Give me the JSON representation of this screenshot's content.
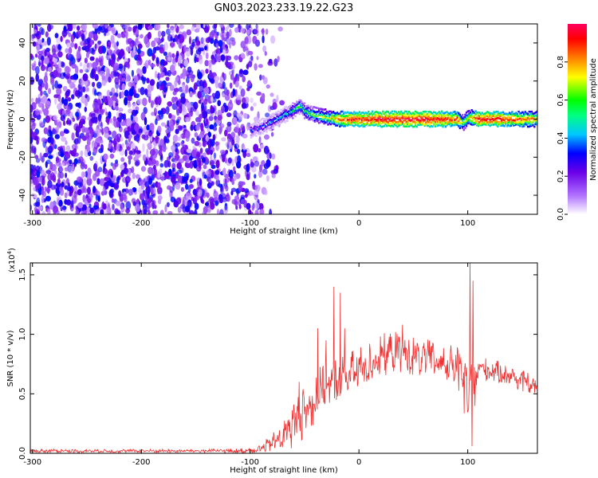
{
  "title": "GN03.2023.233.19.22.G23",
  "chart_data": [
    {
      "type": "heatmap",
      "name": "spectrogram",
      "xlabel": "Height of straight line (km)",
      "ylabel": "Frequency (Hz)",
      "xlim": [
        -302,
        164
      ],
      "ylim": [
        -50,
        50
      ],
      "xticks": [
        -300,
        -200,
        -100,
        0,
        100
      ],
      "yticks": [
        -40,
        -20,
        0,
        20,
        40
      ],
      "colorbar": {
        "label": "Normalized spectral amplitude",
        "range": [
          0.0,
          1.0
        ],
        "ticks": [
          0.0,
          0.2,
          0.4,
          0.6,
          0.8
        ],
        "colormap": [
          "#ffffff",
          "#b070ff",
          "#6a00e8",
          "#0000ff",
          "#00c8ff",
          "#00ff00",
          "#ffff00",
          "#ff8000",
          "#ff0000",
          "#ff0060"
        ]
      },
      "noise_region_x": [
        -302,
        -80
      ],
      "signal_track": {
        "x": [
          -100,
          -90,
          -80,
          -70,
          -60,
          -55,
          -50,
          -40,
          -30,
          -20,
          -10,
          0,
          20,
          40,
          60,
          80,
          90,
          95,
          100,
          110,
          130,
          164
        ],
        "y": [
          -6,
          -4,
          -1,
          2,
          5,
          7,
          4,
          2,
          1,
          0,
          0,
          0,
          0,
          0,
          0,
          0,
          0,
          -2,
          1,
          0,
          0,
          0
        ],
        "amp": [
          0.35,
          0.35,
          0.4,
          0.45,
          0.55,
          0.55,
          0.55,
          0.6,
          0.65,
          0.8,
          0.9,
          0.9,
          0.95,
          0.95,
          0.95,
          0.9,
          0.85,
          0.6,
          0.7,
          0.95,
          0.9,
          0.75
        ]
      }
    },
    {
      "type": "line",
      "name": "snr",
      "xlabel": "Height of straight line (km)",
      "ylabel": "SNR (10 * v/v)",
      "multiplier": "(x10",
      "multiplier_exp": "4",
      "multiplier_close": ")",
      "color": "#ee3333",
      "xlim": [
        -302,
        164
      ],
      "ylim": [
        0,
        1.6
      ],
      "xticks": [
        -300,
        -200,
        -100,
        0,
        100
      ],
      "yticks": [
        0.0,
        0.5,
        1.0,
        1.5
      ],
      "ytick_labels": [
        "0.0",
        "0.5",
        "1.0",
        "1.5"
      ],
      "envelope": {
        "x": [
          -302,
          -150,
          -110,
          -90,
          -80,
          -70,
          -60,
          -50,
          -40,
          -30,
          -20,
          -10,
          0,
          10,
          20,
          30,
          40,
          50,
          60,
          70,
          80,
          90,
          100,
          105,
          110,
          120,
          140,
          164
        ],
        "y": [
          0.02,
          0.02,
          0.02,
          0.04,
          0.08,
          0.15,
          0.25,
          0.35,
          0.48,
          0.58,
          0.62,
          0.65,
          0.7,
          0.76,
          0.82,
          0.85,
          0.85,
          0.82,
          0.8,
          0.78,
          0.75,
          0.72,
          0.5,
          0.55,
          0.72,
          0.7,
          0.65,
          0.55
        ],
        "amp": [
          0.015,
          0.015,
          0.02,
          0.04,
          0.08,
          0.15,
          0.2,
          0.22,
          0.22,
          0.2,
          0.2,
          0.2,
          0.2,
          0.18,
          0.18,
          0.18,
          0.17,
          0.17,
          0.17,
          0.17,
          0.17,
          0.18,
          0.3,
          0.3,
          0.1,
          0.1,
          0.09,
          0.09
        ]
      },
      "spikes": [
        {
          "x": -55,
          "y": 0.6
        },
        {
          "x": -38,
          "y": 1.05
        },
        {
          "x": -30,
          "y": 0.95
        },
        {
          "x": -23,
          "y": 1.4
        },
        {
          "x": -17,
          "y": 1.35
        },
        {
          "x": -13,
          "y": 1.05
        },
        {
          "x": 40,
          "y": 1.08
        },
        {
          "x": 102,
          "y": 1.63
        },
        {
          "x": 105,
          "y": 1.45
        },
        {
          "x": 104,
          "y": 0.06
        }
      ]
    }
  ]
}
